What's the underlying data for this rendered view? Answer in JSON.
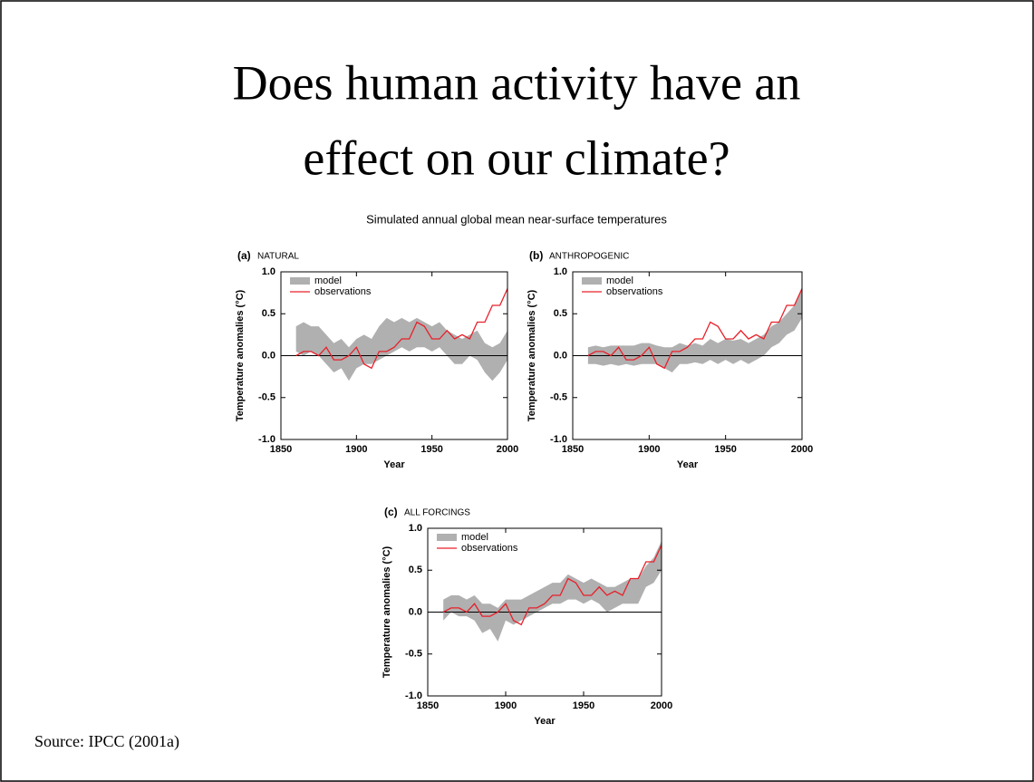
{
  "slide": {
    "title_lines": [
      "Does human activity have an",
      "effect on our climate?"
    ],
    "source": "Source: IPCC (2001a)"
  },
  "figure_title": "Simulated annual global mean near-surface temperatures",
  "chart_data": [
    {
      "type": "band_line",
      "panel": "(a)",
      "title": "NATURAL",
      "xlabel": "Year",
      "ylabel": "Temperature anomalies (°C)",
      "x": [
        1860,
        1865,
        1870,
        1875,
        1880,
        1885,
        1890,
        1895,
        1900,
        1905,
        1910,
        1915,
        1920,
        1925,
        1930,
        1935,
        1940,
        1945,
        1950,
        1955,
        1960,
        1965,
        1970,
        1975,
        1980,
        1985,
        1990,
        1995,
        2000
      ],
      "series": [
        {
          "name": "model",
          "color": "#b0b0b0",
          "lower": [
            0.05,
            0.0,
            0.05,
            0.0,
            -0.1,
            -0.2,
            -0.15,
            -0.3,
            -0.15,
            -0.1,
            -0.1,
            -0.05,
            0.0,
            0.05,
            0.1,
            0.05,
            0.1,
            0.1,
            0.05,
            0.1,
            0.0,
            -0.1,
            -0.1,
            0.0,
            -0.05,
            -0.2,
            -0.3,
            -0.2,
            -0.05
          ],
          "upper": [
            0.35,
            0.4,
            0.35,
            0.35,
            0.25,
            0.15,
            0.2,
            0.1,
            0.2,
            0.25,
            0.2,
            0.35,
            0.45,
            0.4,
            0.45,
            0.4,
            0.45,
            0.4,
            0.35,
            0.4,
            0.3,
            0.25,
            0.2,
            0.25,
            0.3,
            0.15,
            0.1,
            0.15,
            0.3
          ]
        },
        {
          "name": "observations",
          "color": "#e8202a",
          "values": [
            0.0,
            0.05,
            0.05,
            0.0,
            0.1,
            -0.05,
            -0.05,
            0.0,
            0.1,
            -0.1,
            -0.15,
            0.05,
            0.05,
            0.1,
            0.2,
            0.2,
            0.4,
            0.35,
            0.2,
            0.2,
            0.3,
            0.2,
            0.25,
            0.2,
            0.4,
            0.4,
            0.6,
            0.6,
            0.8
          ]
        }
      ],
      "xlim": [
        1850,
        2000
      ],
      "xticks": [
        1850,
        1900,
        1950,
        2000
      ],
      "ylim": [
        -1,
        1
      ],
      "yticks": [
        {
          "value": 1,
          "label": "1.0"
        },
        0.5,
        {
          "value": 0,
          "label": "0.0"
        },
        -0.5,
        {
          "value": -1,
          "label": "-1.0"
        }
      ]
    },
    {
      "type": "band_line",
      "panel": "(b)",
      "title": "ANTHROPOGENIC",
      "xlabel": "Year",
      "ylabel": "Temperature anomalies (°C)",
      "x": [
        1860,
        1865,
        1870,
        1875,
        1880,
        1885,
        1890,
        1895,
        1900,
        1905,
        1910,
        1915,
        1920,
        1925,
        1930,
        1935,
        1940,
        1945,
        1950,
        1955,
        1960,
        1965,
        1970,
        1975,
        1980,
        1985,
        1990,
        1995,
        2000
      ],
      "series": [
        {
          "name": "model",
          "color": "#b0b0b0",
          "lower": [
            -0.1,
            -0.1,
            -0.12,
            -0.1,
            -0.12,
            -0.1,
            -0.12,
            -0.1,
            -0.1,
            -0.1,
            -0.15,
            -0.2,
            -0.1,
            -0.1,
            -0.08,
            -0.1,
            -0.05,
            -0.1,
            -0.05,
            -0.1,
            -0.05,
            -0.1,
            -0.05,
            0.0,
            0.1,
            0.15,
            0.25,
            0.3,
            0.45
          ],
          "upper": [
            0.1,
            0.12,
            0.1,
            0.12,
            0.12,
            0.12,
            0.12,
            0.15,
            0.15,
            0.12,
            0.1,
            0.1,
            0.15,
            0.12,
            0.15,
            0.12,
            0.2,
            0.15,
            0.2,
            0.18,
            0.2,
            0.15,
            0.2,
            0.25,
            0.35,
            0.4,
            0.5,
            0.6,
            0.8
          ]
        },
        {
          "name": "observations",
          "color": "#e8202a",
          "values": [
            0.0,
            0.05,
            0.05,
            0.0,
            0.1,
            -0.05,
            -0.05,
            0.0,
            0.1,
            -0.1,
            -0.15,
            0.05,
            0.05,
            0.1,
            0.2,
            0.2,
            0.4,
            0.35,
            0.2,
            0.2,
            0.3,
            0.2,
            0.25,
            0.2,
            0.4,
            0.4,
            0.6,
            0.6,
            0.8
          ]
        }
      ],
      "xlim": [
        1850,
        2000
      ],
      "xticks": [
        1850,
        1900,
        1950,
        2000
      ],
      "ylim": [
        -1,
        1
      ],
      "yticks": [
        {
          "value": 1,
          "label": "1.0"
        },
        0.5,
        {
          "value": 0,
          "label": "0.0"
        },
        -0.5,
        {
          "value": -1,
          "label": "-1.0"
        }
      ]
    },
    {
      "type": "band_line",
      "panel": "(c)",
      "title": "ALL FORCINGS",
      "xlabel": "Year",
      "ylabel": "Temperature anomalies (°C)",
      "x": [
        1860,
        1865,
        1870,
        1875,
        1880,
        1885,
        1890,
        1895,
        1900,
        1905,
        1910,
        1915,
        1920,
        1925,
        1930,
        1935,
        1940,
        1945,
        1950,
        1955,
        1960,
        1965,
        1970,
        1975,
        1980,
        1985,
        1990,
        1995,
        2000
      ],
      "series": [
        {
          "name": "model",
          "color": "#b0b0b0",
          "lower": [
            -0.1,
            0.0,
            -0.05,
            -0.05,
            -0.1,
            -0.25,
            -0.2,
            -0.35,
            -0.1,
            -0.15,
            -0.1,
            -0.05,
            0.0,
            0.05,
            0.1,
            0.1,
            0.15,
            0.15,
            0.1,
            0.15,
            0.1,
            0.0,
            0.05,
            0.1,
            0.1,
            0.1,
            0.3,
            0.35,
            0.5
          ],
          "upper": [
            0.15,
            0.2,
            0.2,
            0.15,
            0.2,
            0.1,
            0.1,
            0.05,
            0.15,
            0.15,
            0.15,
            0.2,
            0.25,
            0.3,
            0.35,
            0.35,
            0.45,
            0.4,
            0.35,
            0.4,
            0.35,
            0.3,
            0.3,
            0.35,
            0.4,
            0.4,
            0.55,
            0.65,
            0.85
          ]
        },
        {
          "name": "observations",
          "color": "#e8202a",
          "values": [
            0.0,
            0.05,
            0.05,
            0.0,
            0.1,
            -0.05,
            -0.05,
            0.0,
            0.1,
            -0.1,
            -0.15,
            0.05,
            0.05,
            0.1,
            0.2,
            0.2,
            0.4,
            0.35,
            0.2,
            0.2,
            0.3,
            0.2,
            0.25,
            0.2,
            0.4,
            0.4,
            0.6,
            0.6,
            0.8
          ]
        }
      ],
      "xlim": [
        1850,
        2000
      ],
      "xticks": [
        1850,
        1900,
        1950,
        2000
      ],
      "ylim": [
        -1,
        1
      ],
      "yticks": [
        {
          "value": 1,
          "label": "1.0"
        },
        0.5,
        {
          "value": 0,
          "label": "0.0"
        },
        -0.5,
        {
          "value": -1,
          "label": "-1.0"
        }
      ]
    }
  ]
}
